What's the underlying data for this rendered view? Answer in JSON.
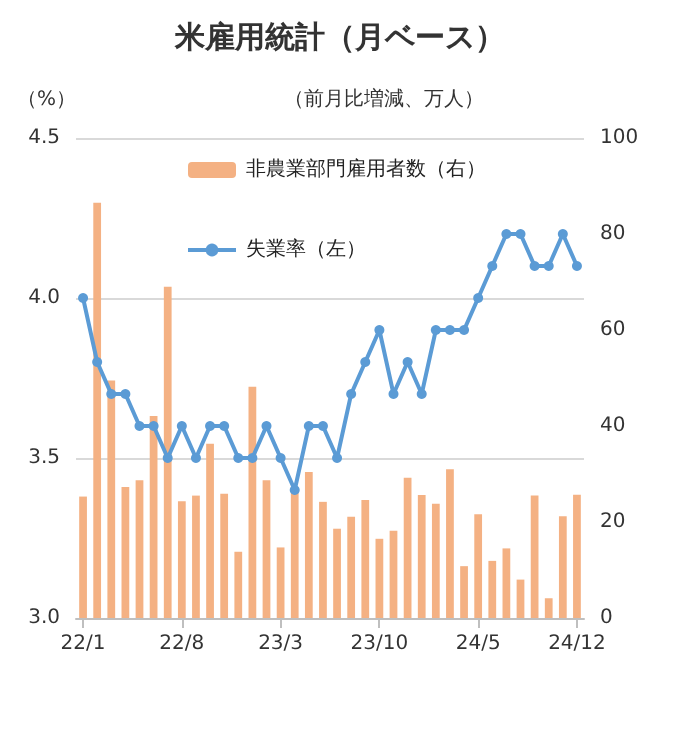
{
  "chart_data": {
    "type": "bar",
    "title": "米雇用統計（月ベース）",
    "ylabel": "（%）",
    "y2label": "（前月比増減、万人）",
    "categories": [
      "22/1",
      null,
      null,
      null,
      null,
      null,
      null,
      "22/8",
      null,
      null,
      null,
      null,
      null,
      null,
      "23/3",
      null,
      null,
      null,
      null,
      null,
      null,
      "23/10",
      null,
      null,
      null,
      null,
      null,
      null,
      "24/5",
      null,
      null,
      null,
      null,
      null,
      null,
      "24/12"
    ],
    "series": [
      {
        "name": "非農業部門雇用者数（右）",
        "axis": "y2",
        "color": "#f4b183",
        "values": [
          25.3,
          86.5,
          49.5,
          27.3,
          28.7,
          42.1,
          69,
          24.3,
          25.5,
          36.3,
          25.9,
          13.8,
          48.2,
          28.7,
          14.7,
          26.5,
          30.4,
          24.2,
          18.6,
          21.1,
          24.6,
          16.5,
          18.2,
          29.2,
          25.6,
          23.8,
          31,
          10.8,
          21.6,
          11.9,
          14.5,
          8,
          25.5,
          4.1,
          21.2,
          25.7
        ]
      },
      {
        "name": "失業率（左）",
        "type": "line",
        "color": "#5b9bd5",
        "values": [
          4.0,
          3.8,
          3.7,
          3.7,
          3.6,
          3.6,
          3.5,
          3.6,
          3.5,
          3.6,
          3.6,
          3.5,
          3.5,
          3.6,
          3.5,
          3.4,
          3.6,
          3.6,
          3.5,
          3.7,
          3.8,
          3.9,
          3.7,
          3.8,
          3.7,
          3.9,
          3.9,
          3.9,
          4.0,
          4.1,
          4.2,
          4.2,
          4.1,
          4.1,
          4.2,
          4.1
        ]
      }
    ],
    "ylim": [
      3,
      4.5
    ],
    "yticks": [
      {
        "value": 3,
        "label": "3.0"
      },
      3.5,
      {
        "value": 4,
        "label": "4.0"
      },
      4.5
    ],
    "y2lim": [
      0,
      100
    ],
    "y2ticks": [
      0,
      20,
      40,
      60,
      80,
      100
    ],
    "grid": "y",
    "legend": "top",
    "marker": "circle",
    "line_style": "solid"
  }
}
